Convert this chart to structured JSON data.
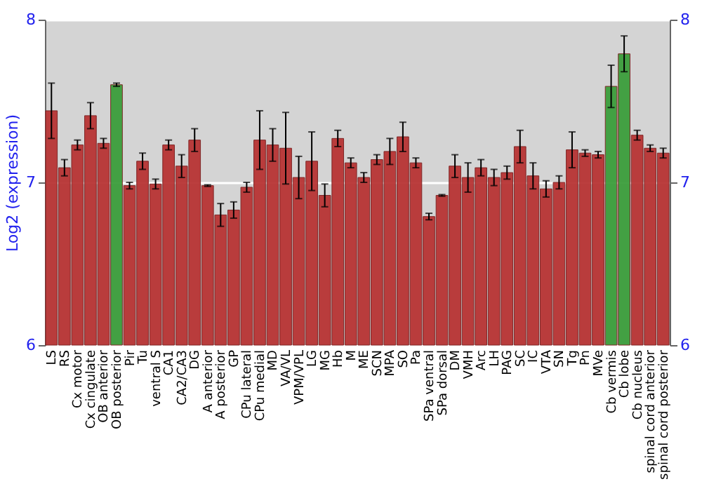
{
  "chart_data": {
    "type": "bar",
    "ylabel": "Log2 (expression)",
    "categories": [
      "LS",
      "RS",
      "Cx motor",
      "Cx cingulate",
      "OB anterior",
      "OB posterior",
      "Pir",
      "Tu",
      "ventral S",
      "CA1",
      "CA2/CA3",
      "DG",
      "A anterior",
      "A posterior",
      "GP",
      "CPu lateral",
      "CPu medial",
      "MD",
      "VA/VL",
      "VPM/VPL",
      "LG",
      "MG",
      "Hb",
      "M",
      "ME",
      "SCN",
      "MPA",
      "SO",
      "Pa",
      "SPa ventral",
      "SPa dorsal",
      "DM",
      "VMH",
      "Arc",
      "LH",
      "PAG",
      "SC",
      "IC",
      "VTA",
      "SN",
      "Tg",
      "Pn",
      "MVe",
      "Cb vermis",
      "Cb lobe",
      "Cb nucleus",
      "spinal cord anterior",
      "spinal cord posterior"
    ],
    "values": [
      7.44,
      7.09,
      7.23,
      7.41,
      7.24,
      7.6,
      6.98,
      7.13,
      6.99,
      7.23,
      7.1,
      7.26,
      6.98,
      6.8,
      6.83,
      6.97,
      7.26,
      7.23,
      7.21,
      7.03,
      7.13,
      6.92,
      7.27,
      7.12,
      7.03,
      7.14,
      7.19,
      7.28,
      7.12,
      6.79,
      6.92,
      7.1,
      7.03,
      7.09,
      7.03,
      7.06,
      7.22,
      7.04,
      6.96,
      7.0,
      7.2,
      7.18,
      7.17,
      7.59,
      7.79,
      7.29,
      7.21,
      7.18
    ],
    "errors": [
      0.17,
      0.05,
      0.03,
      0.08,
      0.03,
      0.01,
      0.02,
      0.05,
      0.03,
      0.03,
      0.07,
      0.07,
      0.005,
      0.07,
      0.05,
      0.03,
      0.18,
      0.1,
      0.22,
      0.13,
      0.18,
      0.07,
      0.05,
      0.03,
      0.03,
      0.03,
      0.08,
      0.09,
      0.03,
      0.02,
      0.005,
      0.07,
      0.09,
      0.05,
      0.05,
      0.04,
      0.1,
      0.08,
      0.05,
      0.04,
      0.11,
      0.02,
      0.02,
      0.13,
      0.11,
      0.03,
      0.02,
      0.03
    ],
    "colors": [
      "#b83434",
      "#b83434",
      "#b83434",
      "#b83434",
      "#b83434",
      "#3c9e3c",
      "#b83434",
      "#b83434",
      "#b83434",
      "#b83434",
      "#b83434",
      "#b83434",
      "#b83434",
      "#b83434",
      "#b83434",
      "#b83434",
      "#b83434",
      "#b83434",
      "#b83434",
      "#b83434",
      "#b83434",
      "#b83434",
      "#b83434",
      "#b83434",
      "#b83434",
      "#b83434",
      "#b83434",
      "#b83434",
      "#b83434",
      "#b83434",
      "#b83434",
      "#b83434",
      "#b83434",
      "#b83434",
      "#b83434",
      "#b83434",
      "#b83434",
      "#b83434",
      "#b83434",
      "#b83434",
      "#b83434",
      "#b83434",
      "#b83434",
      "#3c9e3c",
      "#3c9e3c",
      "#b83434",
      "#b83434",
      "#b83434"
    ],
    "ylim": [
      6,
      8
    ],
    "yticks": [
      6,
      7,
      8
    ],
    "y2lim": [
      6,
      8
    ],
    "y2ticks": [
      6,
      7,
      8
    ],
    "grid": "y"
  }
}
